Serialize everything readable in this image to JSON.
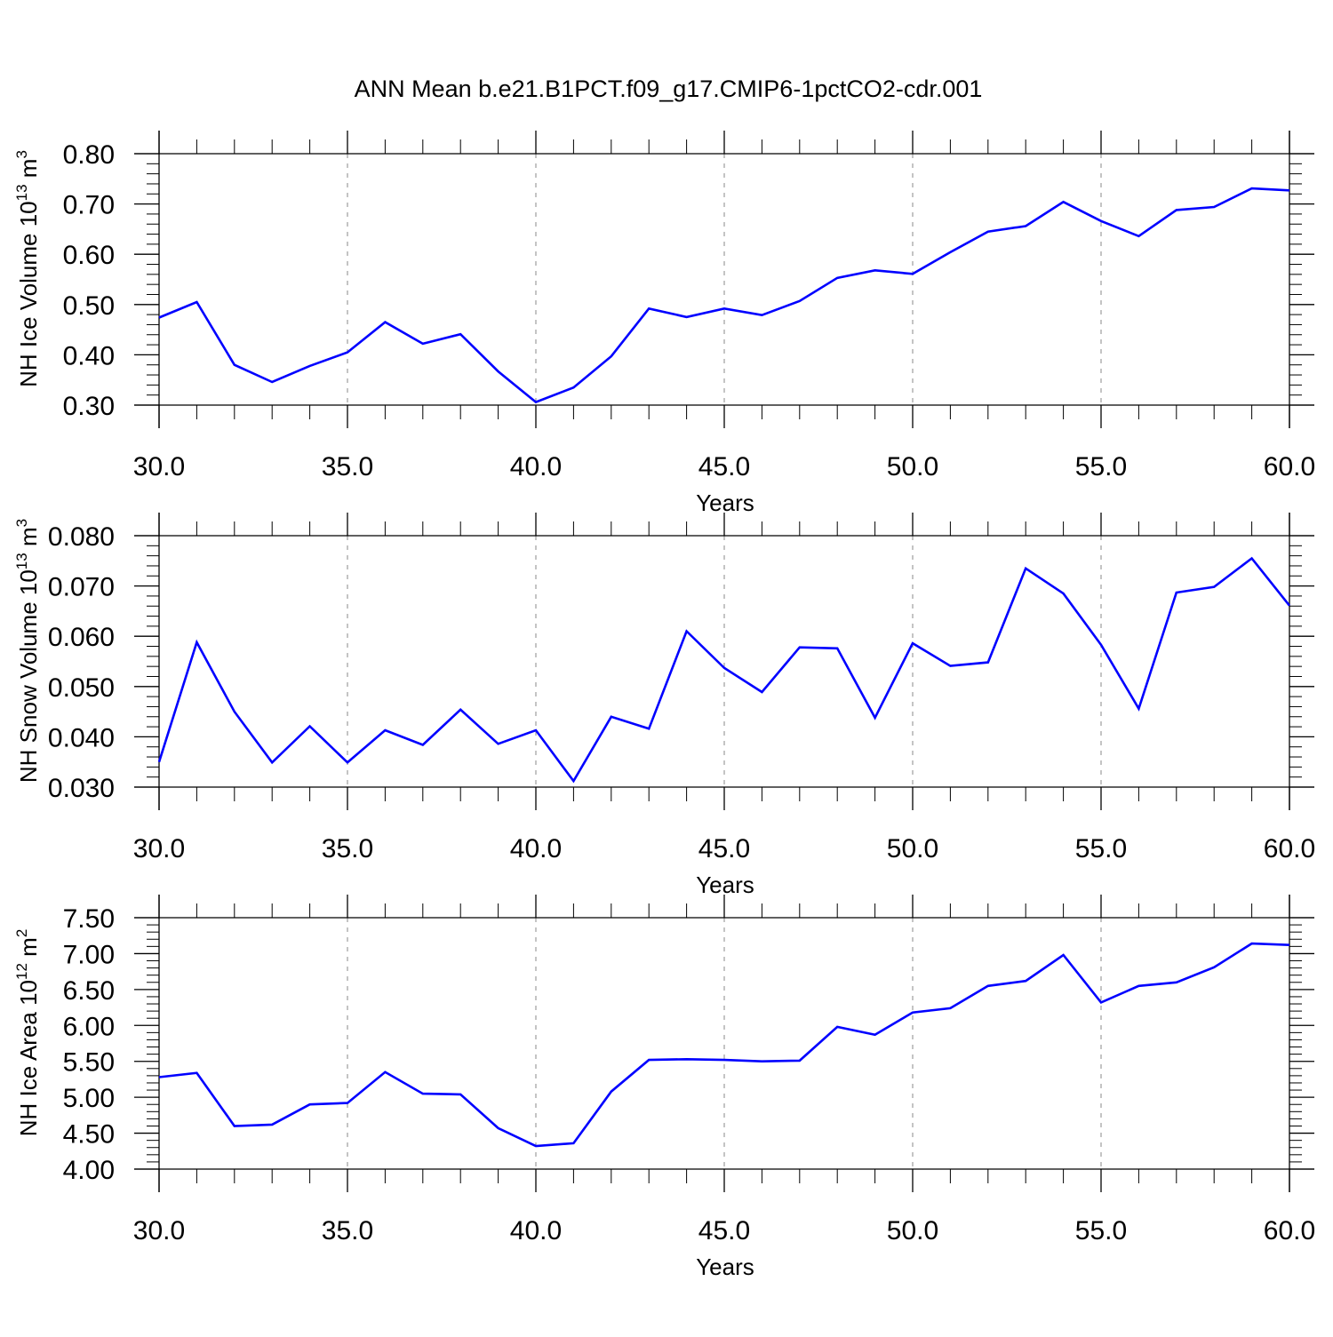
{
  "title": "ANN Mean b.e21.B1PCT.f09_g17.CMIP6-1pctCO2-cdr.001",
  "line_color": "#0000ff",
  "grid_color": "#888888",
  "chart_data": [
    {
      "type": "line",
      "ylabel": "NH Ice Volume 10",
      "ylabel_exp": "13",
      "ylabel_unit": "m",
      "ylabel_unit_exp": "3",
      "xlabel": "Years",
      "xlim": [
        30,
        60
      ],
      "ylim": [
        0.3,
        0.8
      ],
      "xticks": [
        "30.0",
        "35.0",
        "40.0",
        "45.0",
        "50.0",
        "55.0",
        "60.0"
      ],
      "yticks": [
        "0.30",
        "0.40",
        "0.50",
        "0.60",
        "0.70",
        "0.80"
      ],
      "grid": "vertical dashed at major x ticks",
      "series": [
        {
          "x": [
            30,
            31,
            32,
            33,
            34,
            35,
            36,
            37,
            38,
            39,
            40,
            41,
            42,
            43,
            44,
            45,
            46,
            47,
            48,
            49,
            50,
            51,
            52,
            53,
            54,
            55,
            56,
            57,
            58,
            59,
            60
          ],
          "values": [
            0.474,
            0.505,
            0.38,
            0.346,
            0.378,
            0.405,
            0.465,
            0.422,
            0.441,
            0.367,
            0.306,
            0.335,
            0.397,
            0.492,
            0.475,
            0.492,
            0.479,
            0.507,
            0.553,
            0.568,
            0.561,
            0.604,
            0.645,
            0.656,
            0.704,
            0.666,
            0.636,
            0.688,
            0.694,
            0.731,
            0.727
          ]
        }
      ]
    },
    {
      "type": "line",
      "ylabel": "NH Snow Volume 10",
      "ylabel_exp": "13",
      "ylabel_unit": "m",
      "ylabel_unit_exp": "3",
      "xlabel": "Years",
      "xlim": [
        30,
        60
      ],
      "ylim": [
        0.03,
        0.08
      ],
      "xticks": [
        "30.0",
        "35.0",
        "40.0",
        "45.0",
        "50.0",
        "55.0",
        "60.0"
      ],
      "yticks": [
        "0.030",
        "0.040",
        "0.050",
        "0.060",
        "0.070",
        "0.080"
      ],
      "grid": "vertical dashed at major x ticks",
      "series": [
        {
          "x": [
            30,
            31,
            32,
            33,
            34,
            35,
            36,
            37,
            38,
            39,
            40,
            41,
            42,
            43,
            44,
            45,
            46,
            47,
            48,
            49,
            50,
            51,
            52,
            53,
            54,
            55,
            56,
            57,
            58,
            59,
            60
          ],
          "values": [
            0.035,
            0.0588,
            0.045,
            0.0349,
            0.0421,
            0.0349,
            0.0413,
            0.0384,
            0.0454,
            0.0386,
            0.0413,
            0.0312,
            0.044,
            0.0416,
            0.061,
            0.0537,
            0.0489,
            0.0578,
            0.0576,
            0.0438,
            0.0586,
            0.0541,
            0.0548,
            0.0735,
            0.0685,
            0.0583,
            0.0456,
            0.0687,
            0.0698,
            0.0755,
            0.0661
          ]
        }
      ]
    },
    {
      "type": "line",
      "ylabel": "NH Ice Area 10",
      "ylabel_exp": "12",
      "ylabel_unit": "m",
      "ylabel_unit_exp": "2",
      "xlabel": "Years",
      "xlim": [
        30,
        60
      ],
      "ylim": [
        4.0,
        7.5
      ],
      "xticks": [
        "30.0",
        "35.0",
        "40.0",
        "45.0",
        "50.0",
        "55.0",
        "60.0"
      ],
      "yticks": [
        "4.00",
        "4.50",
        "5.00",
        "5.50",
        "6.00",
        "6.50",
        "7.00",
        "7.50"
      ],
      "grid": "vertical dashed at major x ticks",
      "series": [
        {
          "x": [
            30,
            31,
            32,
            33,
            34,
            35,
            36,
            37,
            38,
            39,
            40,
            41,
            42,
            43,
            44,
            45,
            46,
            47,
            48,
            49,
            50,
            51,
            52,
            53,
            54,
            55,
            56,
            57,
            58,
            59,
            60
          ],
          "values": [
            5.28,
            5.34,
            4.6,
            4.62,
            4.9,
            4.92,
            5.35,
            5.05,
            5.04,
            4.57,
            4.32,
            4.36,
            5.08,
            5.52,
            5.53,
            5.52,
            5.5,
            5.51,
            5.98,
            5.87,
            6.18,
            6.24,
            6.55,
            6.62,
            6.98,
            6.32,
            6.55,
            6.6,
            6.81,
            7.14,
            7.12
          ]
        }
      ]
    }
  ]
}
